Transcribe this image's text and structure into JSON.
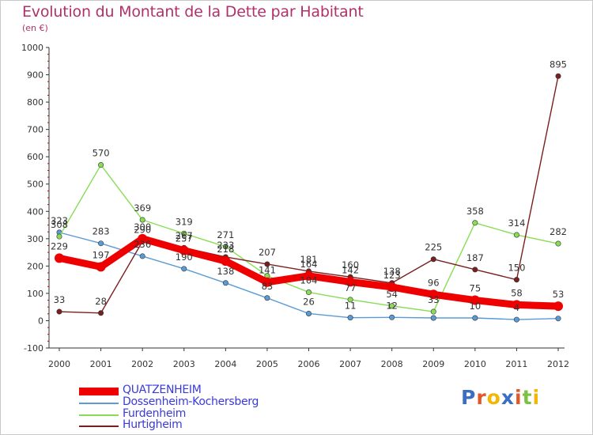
{
  "title": "Evolution du Montant de la Dette par Habitant",
  "unit": "(en €)",
  "logo": {
    "text": "Proxiti",
    "colors": [
      "#3a6fc4",
      "#e0592a",
      "#f2b705",
      "#3a6fc4",
      "#e0592a",
      "#7bc142",
      "#f2b705"
    ]
  },
  "chart_data": {
    "type": "line",
    "x": [
      "2000",
      "2001",
      "2002",
      "2003",
      "2004",
      "2005",
      "2006",
      "2007",
      "2008",
      "2009",
      "2010",
      "2011",
      "2012"
    ],
    "ylim": [
      -100,
      1000
    ],
    "yticks": [
      "-100",
      "0",
      "100",
      "200",
      "300",
      "400",
      "500",
      "600",
      "700",
      "800",
      "900",
      "1000"
    ],
    "grid": false,
    "legend_position": "bottom-left",
    "series": [
      {
        "name": "QUATZENHEIM",
        "color": "#ee0000",
        "values": [
          229,
          197,
          300,
          257,
          218,
          141,
          164,
          142,
          123,
          96,
          75,
          58,
          53
        ],
        "labels": [
          "229",
          "197",
          "300",
          "257",
          "218",
          "141",
          "164",
          "142",
          "123",
          "96",
          "75",
          "58",
          "53"
        ]
      },
      {
        "name": "Dossenheim-Kochersberg",
        "color": "#5b9bd5",
        "values": [
          323,
          283,
          236,
          190,
          138,
          83,
          26,
          11,
          12,
          10,
          10,
          4,
          8
        ],
        "labels": [
          "323",
          "283",
          "236",
          "190",
          "138",
          "83",
          "26",
          "11",
          "12",
          "",
          "10",
          "4",
          ""
        ]
      },
      {
        "name": "Furdenheim",
        "color": "#88dd55",
        "values": [
          308,
          570,
          369,
          319,
          271,
          164,
          104,
          77,
          54,
          33,
          358,
          314,
          282
        ],
        "labels": [
          "308",
          "570",
          "369",
          "319",
          "271",
          "",
          "104",
          "77",
          "54",
          "33",
          "358",
          "314",
          "282"
        ]
      },
      {
        "name": "Hurtigheim",
        "color": "#7a1f1f",
        "values": [
          33,
          28,
          290,
          267,
          233,
          207,
          181,
          160,
          138,
          225,
          187,
          150,
          895
        ],
        "labels": [
          "33",
          "28",
          "290",
          "267",
          "233",
          "207",
          "181",
          "160",
          "138",
          "225",
          "187",
          "150",
          "895"
        ]
      }
    ]
  }
}
